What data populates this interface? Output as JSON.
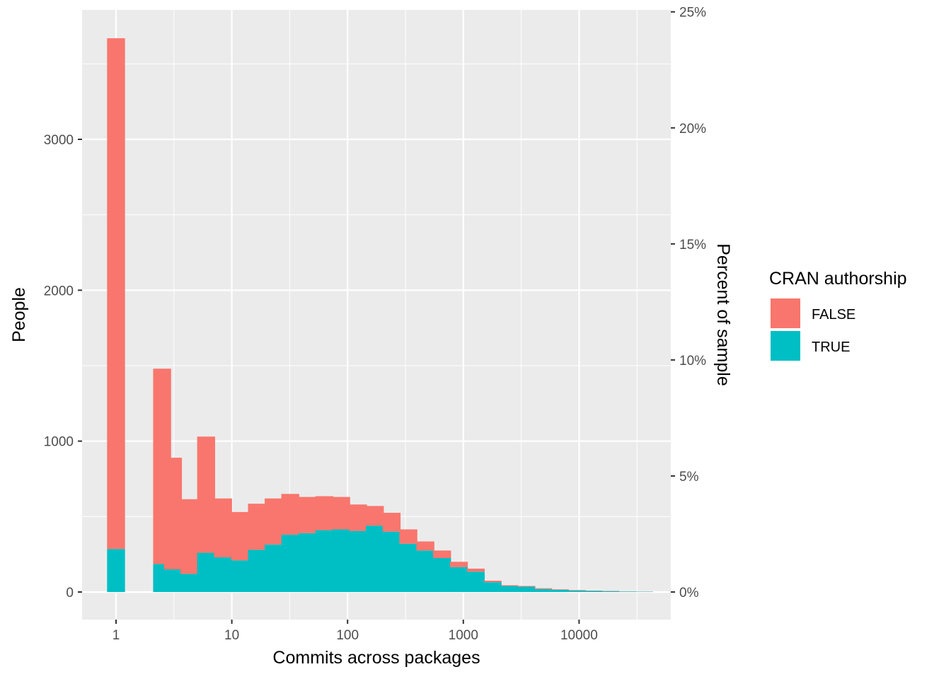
{
  "chart_data": {
    "type": "bar",
    "subtype": "stacked-histogram",
    "x_scale": "log10",
    "xlabel": "Commits across packages",
    "ylabel": "People",
    "y2label": "Percent of sample",
    "x_ticks": [
      1,
      10,
      100,
      1000,
      10000
    ],
    "x_tick_labels": [
      "1",
      "10",
      "100",
      "1000",
      "10000"
    ],
    "y_ticks": [
      0,
      1000,
      2000,
      3000
    ],
    "y_tick_labels": [
      "0",
      "1000",
      "2000",
      "3000"
    ],
    "y2_ticks": [
      0,
      5,
      10,
      15,
      20,
      25
    ],
    "y2_tick_labels": [
      "0%",
      "5%",
      "10%",
      "15%",
      "20%",
      "25%"
    ],
    "y2_total": 15380,
    "ylim": [
      0,
      3850
    ],
    "xlim": [
      0.5,
      50000
    ],
    "grid": true,
    "legend_position": "right",
    "legend_title": "CRAN authorship",
    "bin_width_log10": 0.155,
    "bin_centers": [
      1,
      2,
      2.5,
      3.1,
      4.3,
      6,
      8.4,
      11.8,
      16.5,
      23,
      32,
      45,
      63,
      88,
      123,
      172,
      240,
      335,
      470,
      655,
      915,
      1280,
      1790,
      2500,
      3500,
      4890,
      6830,
      9550,
      13350,
      18650,
      26050,
      36400
    ],
    "series": [
      {
        "name": "FALSE",
        "color": "#F8766D",
        "values": [
          3385,
          0,
          1295,
          740,
          495,
          770,
          390,
          320,
          305,
          305,
          270,
          240,
          225,
          215,
          175,
          130,
          125,
          95,
          60,
          50,
          35,
          20,
          10,
          5,
          5,
          5,
          3,
          3,
          2,
          2,
          1,
          1
        ]
      },
      {
        "name": "TRUE",
        "color": "#00BFC4",
        "values": [
          285,
          0,
          185,
          150,
          120,
          260,
          230,
          210,
          280,
          315,
          380,
          390,
          410,
          415,
          405,
          440,
          400,
          320,
          275,
          225,
          165,
          135,
          65,
          40,
          35,
          20,
          15,
          10,
          7,
          5,
          3,
          2
        ]
      }
    ]
  }
}
